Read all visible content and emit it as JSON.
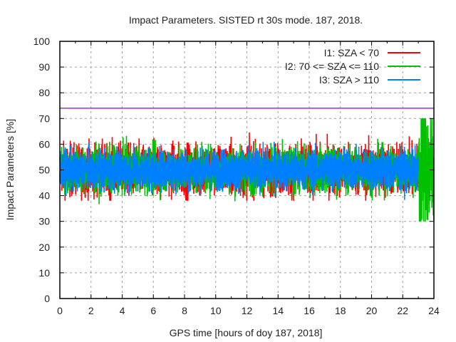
{
  "chart_data": {
    "type": "line",
    "title": "Impact Parameters. SISTED rt 30s mode. 187, 2018.",
    "xlabel": "GPS time [hours of doy 187, 2018]",
    "ylabel": "Impact Parameters [%]",
    "xlim": [
      0,
      24
    ],
    "ylim": [
      0,
      100
    ],
    "xticks": [
      "0",
      "2",
      "4",
      "6",
      "8",
      "10",
      "12",
      "14",
      "16",
      "18",
      "20",
      "22",
      "24"
    ],
    "yticks": [
      "0",
      "10",
      "20",
      "30",
      "40",
      "50",
      "60",
      "70",
      "80",
      "90",
      "100"
    ],
    "grid": true,
    "legend_position": "top-right",
    "reference_line": {
      "y": 74,
      "color": "#9400d3"
    },
    "series": [
      {
        "name": "I1: SZA < 70",
        "color": "#ff0000",
        "mean": 50,
        "typical_range": [
          41,
          59
        ],
        "extremes": {
          "max": 70,
          "min": 38
        },
        "x_range": [
          0,
          23
        ]
      },
      {
        "name": "I2: 70 <= SZA <= 110",
        "color": "#00c000",
        "mean": 50,
        "typical_range": [
          42,
          58
        ],
        "extremes": {
          "max": 70,
          "min": 30
        },
        "x_range": [
          0,
          24
        ]
      },
      {
        "name": "I3: SZA > 110",
        "color": "#0080ff",
        "mean": 50,
        "typical_range": [
          43,
          57
        ],
        "extremes": {
          "max": 66,
          "min": 31
        },
        "x_range": [
          0,
          23
        ]
      }
    ]
  }
}
